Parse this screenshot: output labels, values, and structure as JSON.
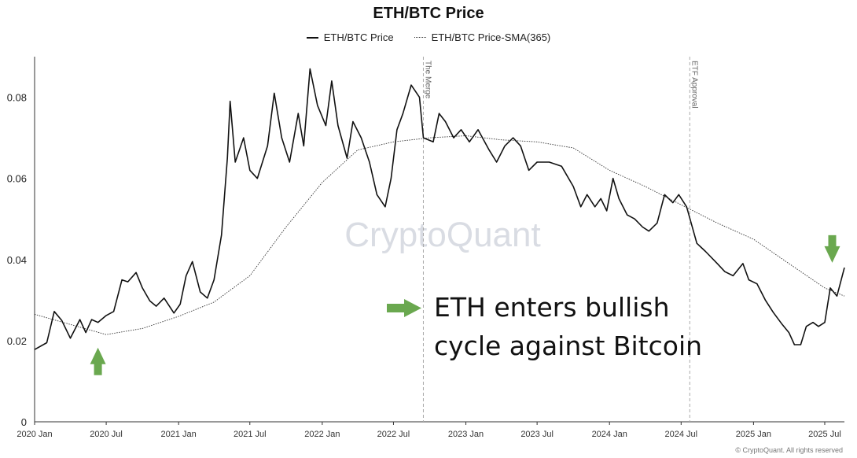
{
  "chart_data": {
    "type": "line",
    "title": "ETH/BTC Price",
    "xlabel": "",
    "ylabel": "",
    "x_range": [
      "2020-01-01",
      "2025-08-20"
    ],
    "ylim": [
      0,
      0.09
    ],
    "y_ticks": [
      "0",
      "0.02",
      "0.04",
      "0.06",
      "0.08"
    ],
    "x_ticks": [
      "2020 Jan",
      "2020 Jul",
      "2021 Jan",
      "2021 Jul",
      "2022 Jan",
      "2022 Jul",
      "2023 Jan",
      "2023 Jul",
      "2024 Jan",
      "2024 Jul",
      "2025 Jan",
      "2025 Jul"
    ],
    "x_tick_dates": [
      "2020-01-01",
      "2020-07-01",
      "2021-01-01",
      "2021-07-01",
      "2022-01-01",
      "2022-07-01",
      "2023-01-01",
      "2023-07-01",
      "2024-01-01",
      "2024-07-01",
      "2025-01-01",
      "2025-07-01"
    ],
    "grid": false,
    "legend_position": "top-center",
    "series": [
      {
        "name": "ETH/BTC Price",
        "style": "solid",
        "color": "#111111",
        "points": [
          [
            "2020-01-01",
            0.0178
          ],
          [
            "2020-02-01",
            0.0195
          ],
          [
            "2020-02-20",
            0.0272
          ],
          [
            "2020-03-10",
            0.025
          ],
          [
            "2020-04-01",
            0.0206
          ],
          [
            "2020-04-25",
            0.0252
          ],
          [
            "2020-05-10",
            0.022
          ],
          [
            "2020-05-25",
            0.0252
          ],
          [
            "2020-06-10",
            0.0245
          ],
          [
            "2020-07-01",
            0.0262
          ],
          [
            "2020-07-20",
            0.0272
          ],
          [
            "2020-08-10",
            0.035
          ],
          [
            "2020-08-25",
            0.0345
          ],
          [
            "2020-09-15",
            0.0368
          ],
          [
            "2020-10-01",
            0.033
          ],
          [
            "2020-10-20",
            0.0298
          ],
          [
            "2020-11-05",
            0.0285
          ],
          [
            "2020-11-25",
            0.0305
          ],
          [
            "2020-12-20",
            0.0268
          ],
          [
            "2021-01-05",
            0.029
          ],
          [
            "2021-01-20",
            0.036
          ],
          [
            "2021-02-05",
            0.0395
          ],
          [
            "2021-02-25",
            0.032
          ],
          [
            "2021-03-15",
            0.0305
          ],
          [
            "2021-04-01",
            0.035
          ],
          [
            "2021-04-20",
            0.046
          ],
          [
            "2021-05-05",
            0.065
          ],
          [
            "2021-05-12",
            0.079
          ],
          [
            "2021-05-25",
            0.064
          ],
          [
            "2021-06-15",
            0.07
          ],
          [
            "2021-07-01",
            0.062
          ],
          [
            "2021-07-20",
            0.06
          ],
          [
            "2021-08-15",
            0.068
          ],
          [
            "2021-09-01",
            0.081
          ],
          [
            "2021-09-20",
            0.07
          ],
          [
            "2021-10-10",
            0.064
          ],
          [
            "2021-11-01",
            0.076
          ],
          [
            "2021-11-15",
            0.068
          ],
          [
            "2021-12-01",
            0.087
          ],
          [
            "2021-12-20",
            0.078
          ],
          [
            "2022-01-10",
            0.073
          ],
          [
            "2022-01-25",
            0.084
          ],
          [
            "2022-02-10",
            0.073
          ],
          [
            "2022-03-05",
            0.065
          ],
          [
            "2022-03-20",
            0.074
          ],
          [
            "2022-04-10",
            0.07
          ],
          [
            "2022-05-01",
            0.064
          ],
          [
            "2022-05-20",
            0.056
          ],
          [
            "2022-06-10",
            0.053
          ],
          [
            "2022-06-25",
            0.06
          ],
          [
            "2022-07-10",
            0.072
          ],
          [
            "2022-07-25",
            0.076
          ],
          [
            "2022-08-15",
            0.083
          ],
          [
            "2022-09-05",
            0.08
          ],
          [
            "2022-09-15",
            0.07
          ],
          [
            "2022-10-10",
            0.069
          ],
          [
            "2022-10-25",
            0.076
          ],
          [
            "2022-11-10",
            0.074
          ],
          [
            "2022-12-01",
            0.07
          ],
          [
            "2022-12-20",
            0.072
          ],
          [
            "2023-01-10",
            0.069
          ],
          [
            "2023-02-01",
            0.072
          ],
          [
            "2023-03-01",
            0.067
          ],
          [
            "2023-03-20",
            0.064
          ],
          [
            "2023-04-10",
            0.068
          ],
          [
            "2023-05-01",
            0.07
          ],
          [
            "2023-05-20",
            0.068
          ],
          [
            "2023-06-10",
            0.062
          ],
          [
            "2023-07-01",
            0.064
          ],
          [
            "2023-08-01",
            0.064
          ],
          [
            "2023-09-01",
            0.063
          ],
          [
            "2023-10-01",
            0.058
          ],
          [
            "2023-10-20",
            0.053
          ],
          [
            "2023-11-05",
            0.056
          ],
          [
            "2023-11-25",
            0.053
          ],
          [
            "2023-12-10",
            0.055
          ],
          [
            "2023-12-25",
            0.052
          ],
          [
            "2024-01-10",
            0.06
          ],
          [
            "2024-01-25",
            0.055
          ],
          [
            "2024-02-15",
            0.051
          ],
          [
            "2024-03-05",
            0.05
          ],
          [
            "2024-03-25",
            0.048
          ],
          [
            "2024-04-10",
            0.047
          ],
          [
            "2024-05-01",
            0.049
          ],
          [
            "2024-05-20",
            0.056
          ],
          [
            "2024-06-10",
            0.054
          ],
          [
            "2024-06-25",
            0.056
          ],
          [
            "2024-07-15",
            0.053
          ],
          [
            "2024-08-10",
            0.044
          ],
          [
            "2024-09-01",
            0.042
          ],
          [
            "2024-10-01",
            0.039
          ],
          [
            "2024-10-20",
            0.037
          ],
          [
            "2024-11-10",
            0.036
          ],
          [
            "2024-12-05",
            0.039
          ],
          [
            "2024-12-20",
            0.035
          ],
          [
            "2025-01-10",
            0.034
          ],
          [
            "2025-01-31",
            0.03
          ],
          [
            "2025-02-20",
            0.027
          ],
          [
            "2025-03-15",
            0.024
          ],
          [
            "2025-04-01",
            0.022
          ],
          [
            "2025-04-15",
            0.019
          ],
          [
            "2025-05-01",
            0.019
          ],
          [
            "2025-05-15",
            0.0235
          ],
          [
            "2025-06-01",
            0.0245
          ],
          [
            "2025-06-15",
            0.0235
          ],
          [
            "2025-07-01",
            0.0245
          ],
          [
            "2025-07-15",
            0.033
          ],
          [
            "2025-08-01",
            0.031
          ],
          [
            "2025-08-20",
            0.038
          ]
        ]
      },
      {
        "name": "ETH/BTC Price-SMA(365)",
        "style": "dotted",
        "color": "#333333",
        "points": [
          [
            "2020-01-01",
            0.0265
          ],
          [
            "2020-04-01",
            0.024
          ],
          [
            "2020-07-01",
            0.0215
          ],
          [
            "2020-10-01",
            0.023
          ],
          [
            "2021-01-01",
            0.026
          ],
          [
            "2021-04-01",
            0.0295
          ],
          [
            "2021-07-01",
            0.036
          ],
          [
            "2021-10-01",
            0.048
          ],
          [
            "2022-01-01",
            0.059
          ],
          [
            "2022-04-01",
            0.067
          ],
          [
            "2022-07-01",
            0.069
          ],
          [
            "2022-10-01",
            0.07
          ],
          [
            "2023-01-01",
            0.0705
          ],
          [
            "2023-04-01",
            0.0695
          ],
          [
            "2023-07-01",
            0.069
          ],
          [
            "2023-10-01",
            0.0675
          ],
          [
            "2024-01-01",
            0.062
          ],
          [
            "2024-04-01",
            0.058
          ],
          [
            "2024-07-01",
            0.0535
          ],
          [
            "2024-10-01",
            0.049
          ],
          [
            "2025-01-01",
            0.045
          ],
          [
            "2025-04-01",
            0.039
          ],
          [
            "2025-07-01",
            0.033
          ],
          [
            "2025-08-20",
            0.031
          ]
        ]
      }
    ],
    "annotations": [
      {
        "date": "2022-09-15",
        "label": "The Merge"
      },
      {
        "date": "2024-07-23",
        "label": "ETF Approval"
      }
    ],
    "arrows": [
      {
        "date": "2020-06-10",
        "value": 0.0115,
        "direction": "up",
        "color": "#6aa84f"
      },
      {
        "date": "2025-07-20",
        "value": 0.046,
        "direction": "down",
        "color": "#6aa84f"
      }
    ]
  },
  "watermark": "CryptoQuant",
  "annotation_text": {
    "line1": "ETH enters bullish",
    "line2": "cycle against Bitcoin"
  },
  "footer": "© CryptoQuant. All rights reserved"
}
